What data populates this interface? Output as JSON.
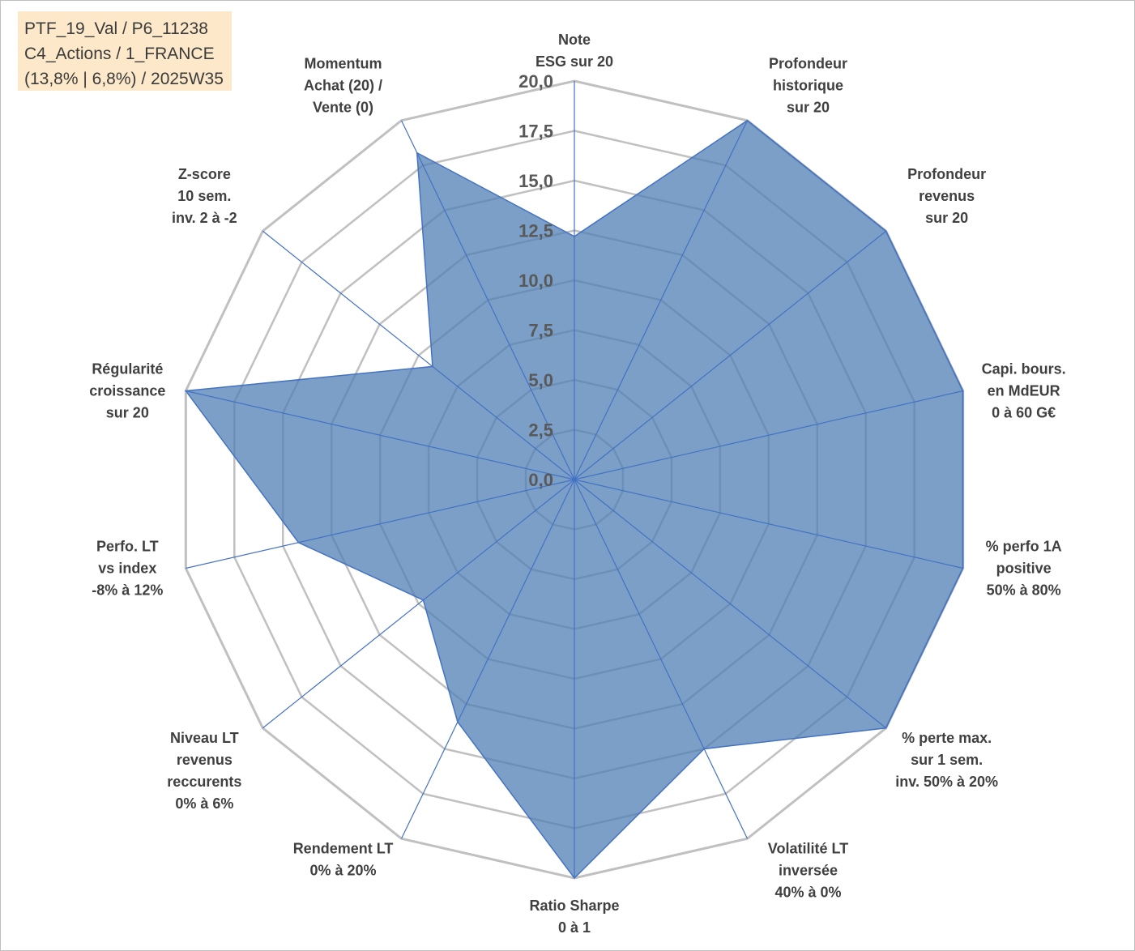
{
  "info_box": {
    "lines": [
      "PTF_19_Val / P6_11238",
      "C4_Actions / 1_FRANCE",
      "(13,8% | 6,8%) / 2025W35"
    ]
  },
  "colors": {
    "grid": "#c0c0c0",
    "spoke": "#4472c4",
    "fill": "#4f7fb3",
    "fill_opacity": 0.75,
    "series_line": "#4472c4"
  },
  "chart_data": {
    "type": "radar",
    "r_range": [
      0,
      20
    ],
    "r_ticks": [
      "0,0",
      "2,5",
      "5,0",
      "7,5",
      "10,0",
      "12,5",
      "15,0",
      "17,5",
      "20,0"
    ],
    "r_tick_values": [
      0,
      2.5,
      5,
      7.5,
      10,
      12.5,
      15,
      17.5,
      20
    ],
    "grid": true,
    "axes": [
      {
        "label": [
          "Note",
          "ESG sur 20"
        ],
        "value": 12.2
      },
      {
        "label": [
          "Profondeur",
          "historique",
          "sur 20"
        ],
        "value": 20.0
      },
      {
        "label": [
          "Profondeur",
          "revenus",
          "sur 20"
        ],
        "value": 20.0
      },
      {
        "label": [
          "Capi. bours.",
          "en MdEUR",
          "0 à 60 G€"
        ],
        "value": 20.0
      },
      {
        "label": [
          "% perfo 1A",
          "positive",
          "50% à 80%"
        ],
        "value": 20.0
      },
      {
        "label": [
          "% perte max.",
          "sur 1 sem.",
          "inv. 50% à 20%"
        ],
        "value": 20.0
      },
      {
        "label": [
          "Volatilité LT",
          "inversée",
          "40% à 0%"
        ],
        "value": 15.0
      },
      {
        "label": [
          "Ratio Sharpe",
          "0 à 1"
        ],
        "value": 20.0
      },
      {
        "label": [
          "Rendement LT",
          "0% à 20%"
        ],
        "value": 13.5
      },
      {
        "label": [
          "Niveau LT",
          "revenus",
          "reccurents",
          "0% à 6%"
        ],
        "value": 9.7
      },
      {
        "label": [
          "Perfo. LT",
          "vs index",
          "-8% à 12%"
        ],
        "value": 14.2
      },
      {
        "label": [
          "Régularité",
          "croissance",
          "sur 20"
        ],
        "value": 20.0
      },
      {
        "label": [
          "Z-score",
          "10 sem.",
          "inv. 2 à -2"
        ],
        "value": 9.1
      },
      {
        "label": [
          "Momentum",
          "Achat (20) /",
          "Vente (0)"
        ],
        "value": 18.2
      }
    ]
  }
}
